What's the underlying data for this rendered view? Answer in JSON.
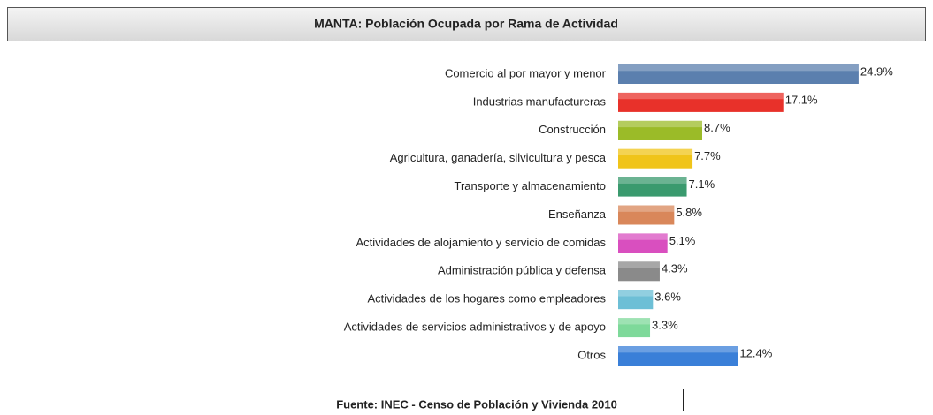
{
  "chart_data": {
    "type": "bar",
    "orientation": "horizontal",
    "title": "MANTA: Población Ocupada por Rama de Actividad",
    "source": "Fuente: INEC -  Censo de Población y Vivienda  2010",
    "categories": [
      "Comercio al por mayor y menor",
      "Industrias manufactureras",
      "Construcción",
      "Agricultura, ganadería, silvicultura y pesca",
      "Transporte y almacenamiento",
      "Enseñanza",
      "Actividades de alojamiento y servicio de comidas",
      "Administración pública y defensa",
      "Actividades de los hogares como empleadores",
      "Actividades de servicios administrativos y de apoyo",
      "Otros"
    ],
    "values": [
      24.9,
      17.1,
      8.7,
      7.7,
      7.1,
      5.8,
      5.1,
      4.3,
      3.6,
      3.3,
      12.4
    ],
    "value_labels": [
      "24.9%",
      "17.1%",
      "8.7%",
      "7.7%",
      "7.1%",
      "5.8%",
      "5.1%",
      "4.3%",
      "3.6%",
      "3.3%",
      "12.4%"
    ],
    "colors": [
      "#5b7fae",
      "#e8312a",
      "#9bbb28",
      "#f0c419",
      "#3a9a6e",
      "#d9875a",
      "#d94fbf",
      "#8a8a8a",
      "#6dbfd6",
      "#7ed99a",
      "#3a7fd8"
    ]
  }
}
